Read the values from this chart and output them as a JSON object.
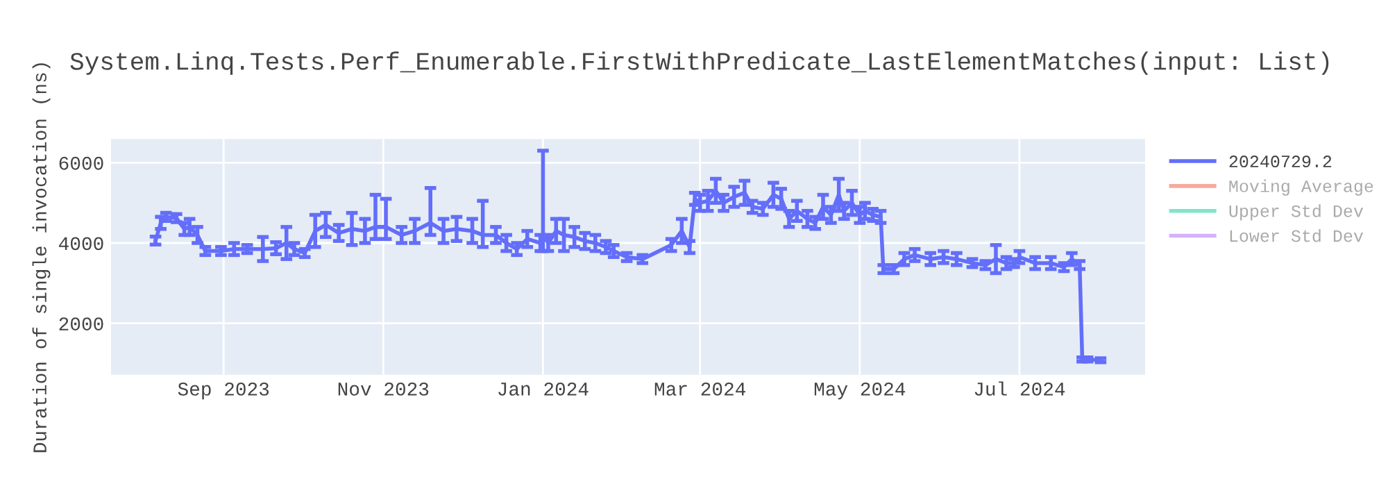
{
  "chart_data": {
    "type": "line",
    "title": "System.Linq.Tests.Perf_Enumerable.FirstWithPredicate_LastElementMatches(input: List)",
    "ylabel": "Duration of single invocation (ns)",
    "x": [
      "2023-08-06",
      "2023-08-08",
      "2023-08-10",
      "2023-08-14",
      "2023-08-17",
      "2023-08-19",
      "2023-08-22",
      "2023-08-25",
      "2023-08-31",
      "2023-09-05",
      "2023-09-10",
      "2023-09-16",
      "2023-09-21",
      "2023-09-25",
      "2023-09-28",
      "2023-10-02",
      "2023-10-06",
      "2023-10-10",
      "2023-10-15",
      "2023-10-20",
      "2023-10-25",
      "2023-10-29",
      "2023-11-02",
      "2023-11-08",
      "2023-11-13",
      "2023-11-19",
      "2023-11-24",
      "2023-11-29",
      "2023-12-05",
      "2023-12-09",
      "2023-12-14",
      "2023-12-18",
      "2023-12-22",
      "2023-12-26",
      "2023-12-31",
      "2024-01-01",
      "2024-01-03",
      "2024-01-06",
      "2024-01-09",
      "2024-01-13",
      "2024-01-17",
      "2024-01-21",
      "2024-01-25",
      "2024-01-28",
      "2024-02-02",
      "2024-02-08",
      "2024-02-19",
      "2024-02-23",
      "2024-02-26",
      "2024-02-28",
      "2024-03-01",
      "2024-03-04",
      "2024-03-07",
      "2024-03-10",
      "2024-03-14",
      "2024-03-18",
      "2024-03-21",
      "2024-03-25",
      "2024-03-29",
      "2024-04-01",
      "2024-04-04",
      "2024-04-07",
      "2024-04-11",
      "2024-04-14",
      "2024-04-17",
      "2024-04-20",
      "2024-04-23",
      "2024-04-25",
      "2024-04-28",
      "2024-05-01",
      "2024-05-03",
      "2024-05-06",
      "2024-05-09",
      "2024-05-10",
      "2024-05-14",
      "2024-05-18",
      "2024-05-22",
      "2024-05-28",
      "2024-06-02",
      "2024-06-07",
      "2024-06-13",
      "2024-06-18",
      "2024-06-22",
      "2024-06-26",
      "2024-06-29",
      "2024-07-01",
      "2024-07-07",
      "2024-07-13",
      "2024-07-18",
      "2024-07-21",
      "2024-07-24",
      "2024-07-25",
      "2024-07-27",
      "2024-08-01"
    ],
    "series": [
      {
        "name": "20240729.2",
        "color": "#636efa",
        "values": [
          4060,
          4500,
          4650,
          4620,
          4350,
          4400,
          4200,
          3800,
          3800,
          3850,
          3850,
          3850,
          3870,
          4000,
          3850,
          3750,
          4300,
          4450,
          4250,
          4350,
          4300,
          4400,
          4400,
          4200,
          4300,
          4500,
          4300,
          4350,
          4300,
          4200,
          4200,
          4000,
          3850,
          4100,
          4000,
          4200,
          4000,
          4300,
          4200,
          4150,
          4050,
          4000,
          3900,
          3800,
          3650,
          3600,
          3950,
          4300,
          3900,
          5100,
          5000,
          5050,
          5300,
          5000,
          5150,
          5250,
          4900,
          4850,
          5200,
          5100,
          4600,
          4800,
          4600,
          4500,
          4900,
          4700,
          5200,
          4800,
          5000,
          4700,
          4800,
          4700,
          4650,
          3350,
          3350,
          3600,
          3700,
          3600,
          3650,
          3600,
          3500,
          3450,
          3600,
          3500,
          3500,
          3650,
          3500,
          3500,
          3400,
          3600,
          3450,
          1100,
          1100,
          1080
        ],
        "errors": [
          100,
          150,
          100,
          100,
          150,
          200,
          200,
          100,
          100,
          150,
          100,
          300,
          150,
          400,
          150,
          100,
          400,
          300,
          200,
          400,
          300,
          [
            4100,
            5200
          ],
          [
            4100,
            5100
          ],
          200,
          300,
          [
            4200,
            5370
          ],
          300,
          300,
          300,
          [
            3900,
            5050
          ],
          200,
          200,
          150,
          200,
          200,
          [
            3800,
            6300
          ],
          200,
          300,
          400,
          250,
          200,
          200,
          150,
          150,
          100,
          100,
          150,
          300,
          150,
          150,
          200,
          250,
          300,
          200,
          250,
          300,
          150,
          150,
          300,
          250,
          200,
          250,
          200,
          150,
          300,
          200,
          400,
          200,
          300,
          200,
          200,
          150,
          150,
          100,
          100,
          150,
          150,
          150,
          150,
          150,
          100,
          100,
          350,
          150,
          100,
          150,
          150,
          150,
          100,
          150,
          100,
          50,
          50,
          50
        ]
      },
      {
        "name": "Moving Average",
        "color": "#ef553b",
        "values": [
          null,
          null,
          null,
          null,
          null,
          null,
          null,
          null,
          null,
          null,
          null,
          null,
          null,
          null,
          null,
          null,
          null,
          null,
          null,
          null,
          null,
          null,
          null,
          null,
          null,
          null,
          null,
          null,
          null,
          null,
          null,
          null,
          null,
          null,
          null,
          null,
          null,
          null,
          null,
          null,
          null,
          null,
          null,
          null,
          null,
          null,
          null,
          null,
          null,
          null,
          null,
          null,
          null,
          null,
          null,
          null,
          null,
          null,
          null,
          null,
          null,
          null,
          null,
          null,
          null,
          null,
          null,
          null,
          null,
          null,
          null,
          null,
          null,
          null,
          null,
          null,
          null,
          null,
          null,
          null,
          null,
          null,
          null,
          null,
          null,
          null,
          null,
          null,
          null,
          null,
          null,
          null,
          null,
          null
        ]
      },
      {
        "name": "Upper Std Dev",
        "color": "#00cc96",
        "values": [
          null,
          null,
          null,
          null,
          null,
          null,
          null,
          null,
          null,
          null,
          null,
          null,
          null,
          null,
          null,
          null,
          null,
          null,
          null,
          null,
          null,
          null,
          null,
          null,
          null,
          null,
          null,
          null,
          null,
          null,
          null,
          null,
          null,
          null,
          null,
          null,
          null,
          null,
          null,
          null,
          null,
          null,
          null,
          null,
          null,
          null,
          null,
          null,
          null,
          null,
          null,
          null,
          null,
          null,
          null,
          null,
          null,
          null,
          null,
          null,
          null,
          null,
          null,
          null,
          null,
          null,
          null,
          null,
          null,
          null,
          null,
          null,
          null,
          null,
          null,
          null,
          null,
          null,
          null,
          null,
          null,
          null,
          null,
          null,
          null,
          null,
          null,
          null,
          null,
          null,
          null,
          null,
          null,
          null
        ]
      },
      {
        "name": "Lower Std Dev",
        "color": "#ab63fa",
        "values": [
          null,
          null,
          null,
          null,
          null,
          null,
          null,
          null,
          null,
          null,
          null,
          null,
          null,
          null,
          null,
          null,
          null,
          null,
          null,
          null,
          null,
          null,
          null,
          null,
          null,
          null,
          null,
          null,
          null,
          null,
          null,
          null,
          null,
          null,
          null,
          null,
          null,
          null,
          null,
          null,
          null,
          null,
          null,
          null,
          null,
          null,
          null,
          null,
          null,
          null,
          null,
          null,
          null,
          null,
          null,
          null,
          null,
          null,
          null,
          null,
          null,
          null,
          null,
          null,
          null,
          null,
          null,
          null,
          null,
          null,
          null,
          null,
          null,
          null,
          null,
          null,
          null,
          null,
          null,
          null,
          null,
          null,
          null,
          null,
          null,
          null,
          null,
          null,
          null,
          null,
          null,
          null,
          null,
          null
        ]
      }
    ],
    "xlim": [
      "2023-07-20",
      "2024-08-18"
    ],
    "xticks": [
      {
        "value": "2023-09-01",
        "label": "Sep 2023"
      },
      {
        "value": "2023-11-01",
        "label": "Nov 2023"
      },
      {
        "value": "2024-01-01",
        "label": "Jan 2024"
      },
      {
        "value": "2024-03-01",
        "label": "Mar 2024"
      },
      {
        "value": "2024-05-01",
        "label": "May 2024"
      },
      {
        "value": "2024-07-01",
        "label": "Jul 2024"
      }
    ],
    "ylim": [
      720,
      6590
    ],
    "yticks": [
      2000,
      4000,
      6000
    ],
    "grid": true,
    "legend": "right"
  }
}
